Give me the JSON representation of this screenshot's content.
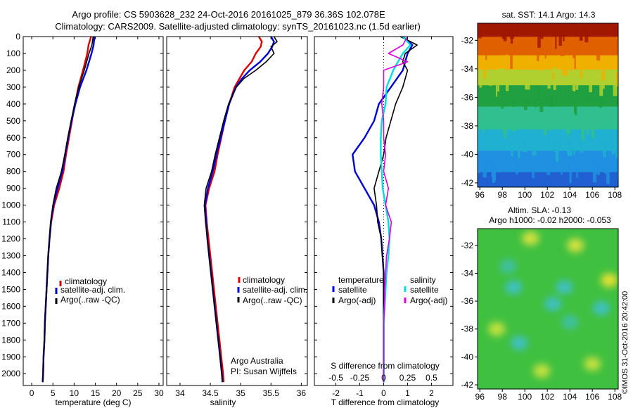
{
  "title": {
    "line1": "Argo profile: CS 5903628_232 24-Oct-2016 20161025_879 36.36S 102.078E",
    "line2": "Climatology: CARS2009. Satellite-adjusted climatology: synTS_20161023.nc (1.5d earlier)"
  },
  "y_ticks": [
    "0",
    "100",
    "200",
    "300",
    "400",
    "500",
    "600",
    "700",
    "800",
    "900",
    "1000",
    "1100",
    "1200",
    "1300",
    "1400",
    "1500",
    "1600",
    "1700",
    "1800",
    "1900",
    "2000"
  ],
  "colors": {
    "climatology": "#dd0000",
    "satellite": "#0000dd",
    "argo": "#000000",
    "satellite_s": "#00dddd",
    "argo_s": "#dd00dd"
  },
  "credit": {
    "institution": "Argo Australia",
    "pi": "PI: Susan Wijffels"
  },
  "stamp": "©IMOS 31-Oct-2016 20:42:00",
  "legend": {
    "climatology": "climatology",
    "satellite_adj": "satellite-adj. clim.",
    "argo": "Argo(..raw -QC)",
    "temperature_head": "temperature",
    "salinity_head": "salinity",
    "satellite": "satellite",
    "argo_adj": "Argo(-adj)"
  },
  "chart_data": [
    {
      "type": "line",
      "id": "temperature",
      "xlabel": "temperature (deg C)",
      "ylabel": "",
      "xlim": [
        -2,
        31
      ],
      "ylim": [
        2070,
        0
      ],
      "xticks": [
        0,
        5,
        10,
        15,
        20,
        25,
        30
      ],
      "depth": [
        0,
        50,
        100,
        200,
        300,
        400,
        500,
        600,
        700,
        800,
        900,
        1000,
        1100,
        1200,
        1300,
        1400,
        1500,
        1600,
        1700,
        1800,
        1900,
        2000,
        2050
      ],
      "series": [
        {
          "name": "climatology",
          "key": "climatology",
          "values": [
            14.0,
            13.4,
            13.1,
            12.1,
            11.0,
            10.2,
            9.5,
            8.8,
            8.1,
            7.5,
            6.5,
            5.3,
            4.6,
            4.2,
            3.9,
            3.7,
            3.5,
            3.3,
            3.1,
            3.0,
            2.8,
            2.7,
            2.6
          ]
        },
        {
          "name": "satellite-adj. clim.",
          "key": "satellite",
          "values": [
            14.8,
            14.6,
            14.1,
            12.9,
            11.4,
            10.3,
            9.4,
            8.6,
            7.9,
            7.2,
            6.1,
            5.1,
            4.5,
            4.2,
            3.9,
            3.7,
            3.5,
            3.3,
            3.1,
            3.0,
            2.8,
            2.7,
            2.6
          ]
        },
        {
          "name": "Argo(..raw -QC)",
          "key": "argo",
          "values": [
            14.5,
            14.2,
            13.5,
            12.4,
            11.1,
            10.1,
            9.3,
            8.5,
            7.8,
            7.0,
            5.8,
            5.0,
            4.5,
            4.2,
            3.9,
            3.7,
            3.5,
            3.3,
            3.1,
            3.0,
            2.8,
            2.7,
            2.6
          ]
        }
      ]
    },
    {
      "type": "line",
      "id": "salinity",
      "xlabel": "salinity",
      "ylabel": "",
      "xlim": [
        33.78,
        36.1
      ],
      "ylim": [
        2070,
        0
      ],
      "xticks": [
        34,
        34.5,
        35,
        35.5,
        36
      ],
      "depth": [
        0,
        30,
        60,
        100,
        150,
        200,
        250,
        300,
        400,
        500,
        600,
        700,
        800,
        900,
        1000,
        1100,
        1200,
        1300,
        1400,
        1500,
        1600,
        1700,
        1800,
        1900,
        2000,
        2050
      ],
      "series": [
        {
          "name": "climatology",
          "key": "climatology",
          "values": [
            35.3,
            35.35,
            35.33,
            35.25,
            35.18,
            35.06,
            34.98,
            34.9,
            34.81,
            34.74,
            34.68,
            34.62,
            34.57,
            34.48,
            34.42,
            34.44,
            34.47,
            34.5,
            34.53,
            34.56,
            34.59,
            34.62,
            34.65,
            34.68,
            34.71,
            34.72
          ]
        },
        {
          "name": "satellite-adj. clim.",
          "key": "satellite",
          "values": [
            35.5,
            35.55,
            35.52,
            35.45,
            35.32,
            35.15,
            35.02,
            34.92,
            34.81,
            34.74,
            34.67,
            34.6,
            34.54,
            34.46,
            34.41,
            34.43,
            34.45,
            34.48,
            34.51,
            34.54,
            34.57,
            34.6,
            34.63,
            34.66,
            34.69,
            34.7
          ]
        },
        {
          "name": "Argo(..raw -QC)",
          "key": "argo",
          "values": [
            35.55,
            35.6,
            35.5,
            35.55,
            35.42,
            35.25,
            35.05,
            34.93,
            34.8,
            34.72,
            34.65,
            34.58,
            34.52,
            34.43,
            34.4,
            34.42,
            34.45,
            34.48,
            34.51,
            34.54,
            34.57,
            34.6,
            34.63,
            34.66,
            34.69,
            34.7
          ]
        }
      ]
    },
    {
      "type": "line",
      "id": "difference",
      "xlabel": "T difference from climatology",
      "xlabel_top": "S difference from climatology",
      "xlim": [
        -2.9,
        2.9
      ],
      "ylim": [
        2070,
        0
      ],
      "xticks": [
        -2,
        -1,
        0,
        1,
        2
      ],
      "xticks_s": [
        -0.5,
        -0.25,
        0,
        0.25,
        0.5
      ],
      "depth": [
        0,
        50,
        100,
        150,
        200,
        300,
        400,
        500,
        600,
        700,
        800,
        900,
        1000,
        1100,
        1200,
        1300,
        1400,
        1500,
        1600,
        1700,
        1800,
        1900,
        2000,
        2050
      ],
      "series": [
        {
          "name": "satellite",
          "key": "satellite",
          "values": [
            0.8,
            1.2,
            1.0,
            0.9,
            0.8,
            0.3,
            -0.2,
            -0.4,
            -0.8,
            -1.3,
            -1.2,
            -0.8,
            -0.4,
            -0.2,
            -0.1,
            -0.05,
            0,
            0,
            0,
            0,
            0,
            0,
            0,
            0
          ]
        },
        {
          "name": "Argo(-adj)",
          "key": "argo",
          "values": [
            0.7,
            1.4,
            0.9,
            0.8,
            1.0,
            0.8,
            0.5,
            0.3,
            0.1,
            0.0,
            -0.2,
            -0.4,
            -0.3,
            -0.25,
            -0.1,
            -0.05,
            0,
            0,
            0,
            0,
            0,
            0,
            0,
            0
          ]
        },
        {
          "name": "satellite",
          "key": "satellite_s",
          "values": [
            0.2,
            0.28,
            0.2,
            0.15,
            0.1,
            0.03,
            0.02,
            -0.02,
            -0.03,
            -0.03,
            -0.02,
            -0.01,
            0.02,
            0.05,
            0.06,
            0.05,
            0.03,
            0.02,
            0.01,
            0,
            0,
            0,
            0,
            0
          ]
        },
        {
          "name": "Argo(-adj)",
          "key": "argo_s",
          "values": [
            0.25,
            0.2,
            0.05,
            0.25,
            0.0,
            0.0,
            -0.02,
            0.0,
            0.0,
            0.02,
            0.0,
            0.05,
            0.02,
            0.08,
            0.06,
            0.03,
            0.02,
            0.01,
            0.01,
            0,
            0,
            0,
            0,
            0
          ]
        }
      ]
    },
    {
      "type": "heatmap",
      "id": "sst_map",
      "title": "sat. SST: 14.1 Argo: 14.3",
      "xticks": [
        96,
        98,
        100,
        102,
        104,
        106,
        108
      ],
      "yticks": [
        -32,
        -34,
        -36,
        -38,
        -40,
        -42
      ],
      "xlim": [
        95.8,
        108.3
      ],
      "ylim": [
        -42.3,
        -30.8
      ],
      "bands": [
        {
          "lat": -31,
          "color": "#a01800"
        },
        {
          "lat": -32.5,
          "color": "#e06000"
        },
        {
          "lat": -33.6,
          "color": "#f0b000"
        },
        {
          "lat": -34.5,
          "color": "#b0d030"
        },
        {
          "lat": -35.8,
          "color": "#20a040"
        },
        {
          "lat": -37.5,
          "color": "#30c090"
        },
        {
          "lat": -39,
          "color": "#20b0d0"
        },
        {
          "lat": -40.5,
          "color": "#2090e0"
        },
        {
          "lat": -42,
          "color": "#2060d0"
        }
      ]
    },
    {
      "type": "heatmap",
      "id": "sla_map",
      "title": "Altim. SLA: -0.13",
      "subtitle": "Argo h1000: -0.02 h2000: -0.053",
      "xticks": [
        96,
        98,
        100,
        102,
        104,
        106,
        108
      ],
      "yticks": [
        -32,
        -34,
        -36,
        -38,
        -40,
        -42
      ],
      "xlim": [
        95.8,
        108.3
      ],
      "ylim": [
        -42.3,
        -30.8
      ],
      "background": "#40c040",
      "blobs": [
        {
          "lon": 100.5,
          "lat": -31.5,
          "color": "#d0e040"
        },
        {
          "lon": 104.5,
          "lat": -32.0,
          "color": "#d0e040"
        },
        {
          "lon": 107.5,
          "lat": -34.5,
          "color": "#e0e030"
        },
        {
          "lon": 98.5,
          "lat": -33.5,
          "color": "#40c0a0"
        },
        {
          "lon": 99.0,
          "lat": -35.0,
          "color": "#40c0c0"
        },
        {
          "lon": 103.5,
          "lat": -35.0,
          "color": "#40c0c0"
        },
        {
          "lon": 102.5,
          "lat": -36.2,
          "color": "#40c0c0"
        },
        {
          "lon": 106.8,
          "lat": -36.5,
          "color": "#40c0c0"
        },
        {
          "lon": 104.0,
          "lat": -37.5,
          "color": "#40c0a0"
        },
        {
          "lon": 97.5,
          "lat": -38.0,
          "color": "#c0e040"
        },
        {
          "lon": 99.5,
          "lat": -39.0,
          "color": "#40c0c0"
        },
        {
          "lon": 101.5,
          "lat": -41.0,
          "color": "#c0e040"
        },
        {
          "lon": 106.0,
          "lat": -40.5,
          "color": "#c0e040"
        }
      ]
    }
  ]
}
